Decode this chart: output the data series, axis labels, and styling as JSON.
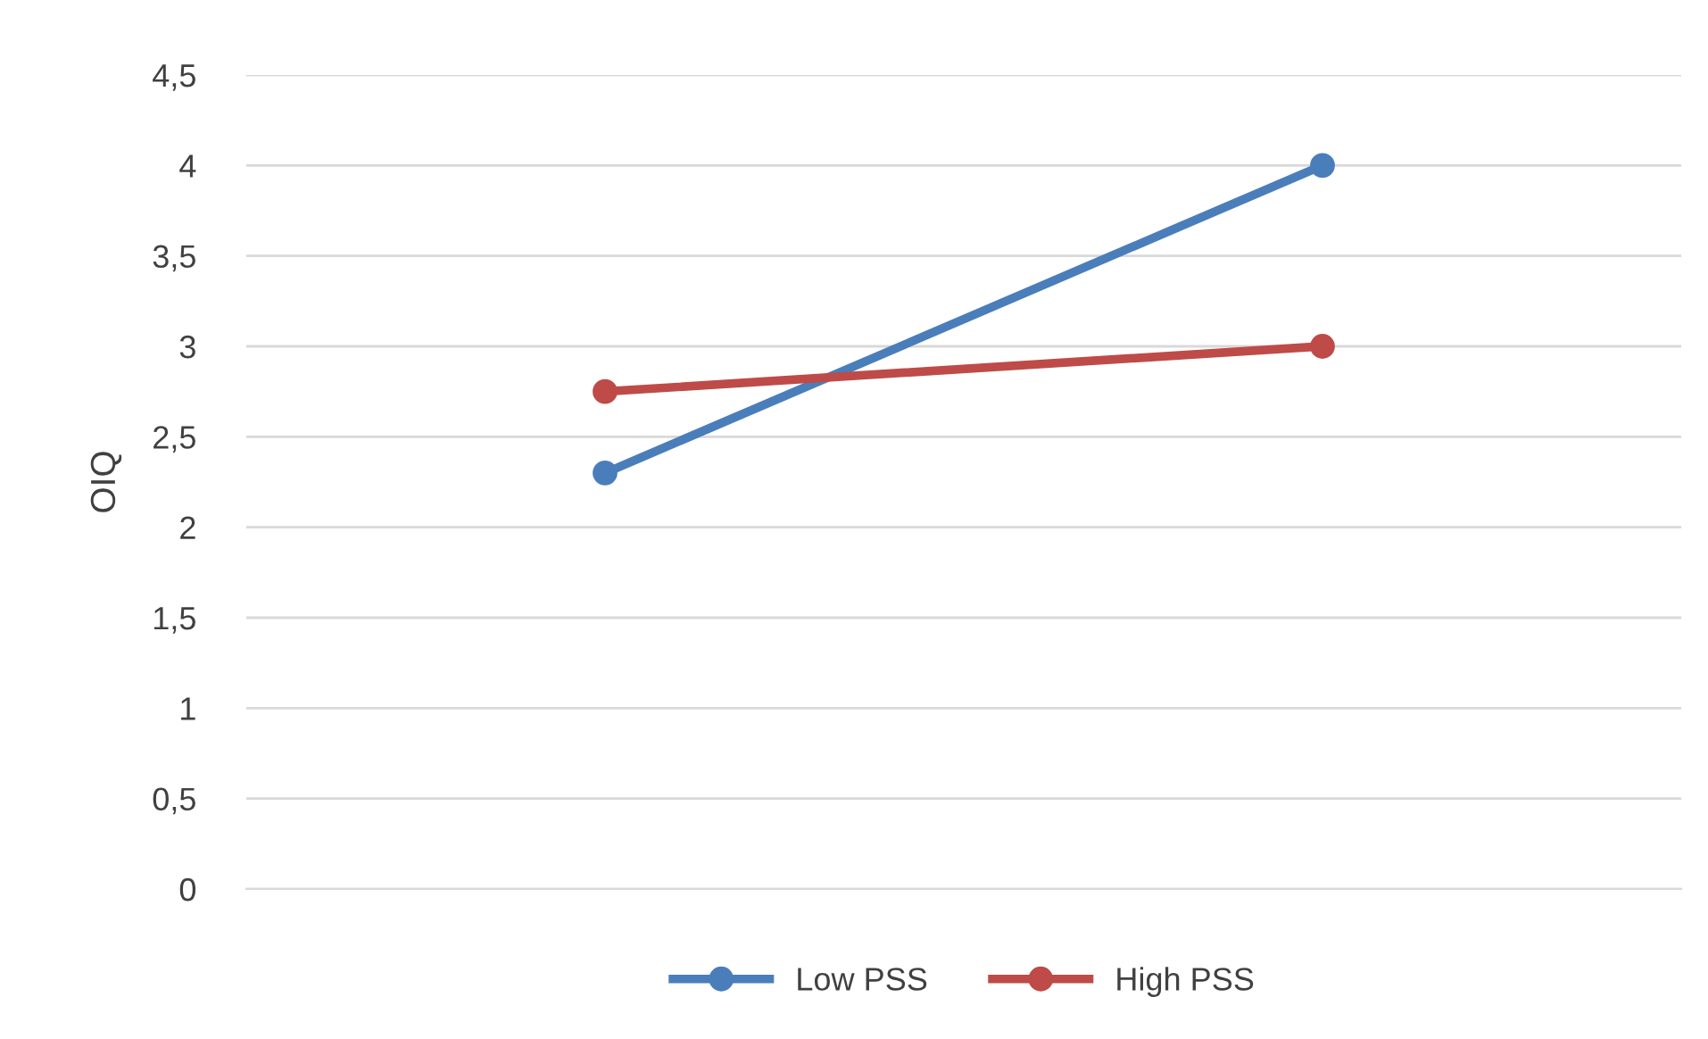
{
  "chart_data": {
    "type": "line",
    "ylabel": "OIQ",
    "categories": [
      null,
      null
    ],
    "series": [
      {
        "name": "Low PSS",
        "color": "#4a7ebb",
        "values": [
          2.3,
          4
        ]
      },
      {
        "name": "High PSS",
        "color": "#be4b48",
        "values": [
          2.75,
          3
        ]
      }
    ],
    "ylim": [
      0,
      4.5
    ],
    "yticks": [
      0,
      {
        "value": 0.5,
        "label": "0,5"
      },
      1,
      {
        "value": 1.5,
        "label": "1,5"
      },
      2,
      {
        "value": 2.5,
        "label": "2,5"
      },
      3,
      {
        "value": 3.5,
        "label": "3,5"
      },
      4,
      {
        "value": 4.5,
        "label": "4,5"
      }
    ],
    "grid": "y",
    "legend": "bottom",
    "marker": "circle",
    "line_style": "solid"
  }
}
